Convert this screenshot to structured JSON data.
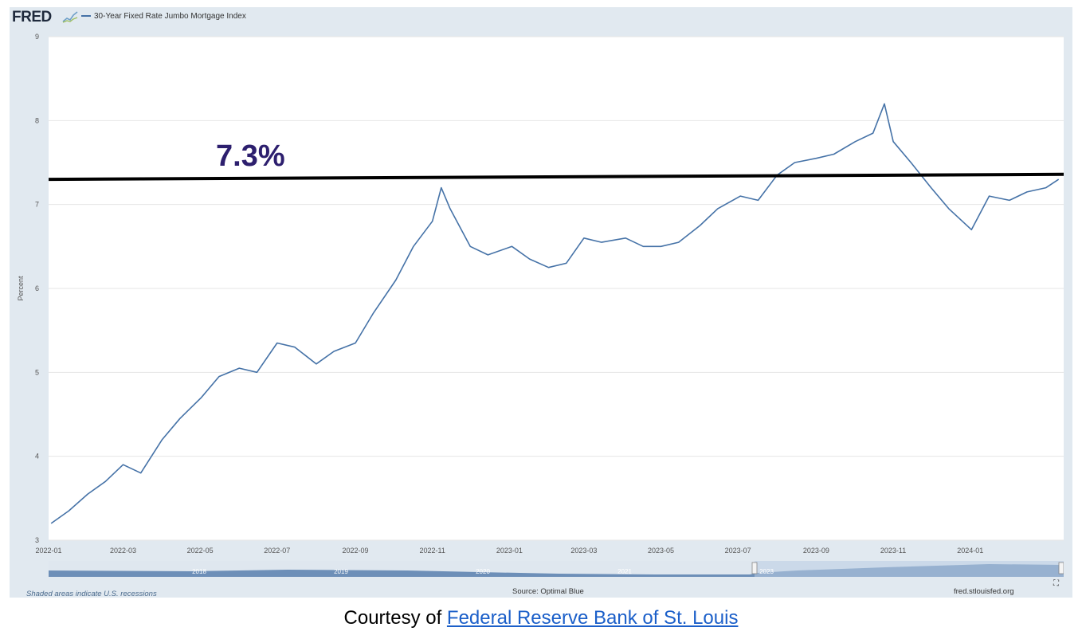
{
  "header": {
    "logo_text": "FRED",
    "legend_label": "30-Year Fixed Rate Jumbo Mortgage Index"
  },
  "annotation": {
    "label": "7.3%",
    "value": 7.3
  },
  "footer": {
    "recession_note": "Shaded areas indicate U.S. recessions",
    "source": "Source: Optimal Blue",
    "site": "fred.stlouisfed.org"
  },
  "caption": {
    "prefix": "Courtesy of ",
    "link_text": "Federal Reserve Bank of St. Louis"
  },
  "navigator": {
    "year_labels": [
      "2018",
      "2019",
      "2020",
      "2021",
      "2023"
    ]
  },
  "colors": {
    "series": "#4572a7",
    "frame": "#e1e9f0",
    "annotation_text": "#2d1f6e",
    "link": "#1b5fc9"
  },
  "chart_data": {
    "type": "line",
    "title": "",
    "xlabel": "",
    "ylabel": "Percent",
    "ylim": [
      3,
      9
    ],
    "y_ticks": [
      "3",
      "4",
      "5",
      "6",
      "7",
      "8",
      "9"
    ],
    "x_ticks": [
      "2022-01",
      "2022-03",
      "2022-05",
      "2022-07",
      "2022-09",
      "2022-11",
      "2023-01",
      "2023-03",
      "2023-05",
      "2023-07",
      "2023-09",
      "2023-11",
      "2024-01"
    ],
    "grid": true,
    "series": [
      {
        "name": "30-Year Fixed Rate Jumbo Mortgage Index",
        "x": [
          "2022-01-03",
          "2022-01-17",
          "2022-02-01",
          "2022-02-15",
          "2022-03-01",
          "2022-03-15",
          "2022-04-01",
          "2022-04-15",
          "2022-05-02",
          "2022-05-16",
          "2022-06-01",
          "2022-06-15",
          "2022-07-01",
          "2022-07-15",
          "2022-08-01",
          "2022-08-15",
          "2022-09-01",
          "2022-09-15",
          "2022-10-03",
          "2022-10-17",
          "2022-11-01",
          "2022-11-08",
          "2022-11-15",
          "2022-12-01",
          "2022-12-15",
          "2023-01-03",
          "2023-01-17",
          "2023-02-01",
          "2023-02-15",
          "2023-03-01",
          "2023-03-15",
          "2023-04-03",
          "2023-04-17",
          "2023-05-01",
          "2023-05-15",
          "2023-06-01",
          "2023-06-15",
          "2023-07-03",
          "2023-07-17",
          "2023-08-01",
          "2023-08-15",
          "2023-09-01",
          "2023-09-15",
          "2023-10-02",
          "2023-10-16",
          "2023-10-25",
          "2023-11-01",
          "2023-11-15",
          "2023-12-01",
          "2023-12-15",
          "2024-01-02",
          "2024-01-16",
          "2024-02-01",
          "2024-02-15",
          "2024-03-01",
          "2024-03-11"
        ],
        "y": [
          3.2,
          3.35,
          3.55,
          3.7,
          3.9,
          3.8,
          4.2,
          4.45,
          4.7,
          4.95,
          5.05,
          5.0,
          5.35,
          5.3,
          5.1,
          5.25,
          5.35,
          5.7,
          6.1,
          6.5,
          6.8,
          7.2,
          6.95,
          6.5,
          6.4,
          6.5,
          6.35,
          6.25,
          6.3,
          6.6,
          6.55,
          6.6,
          6.5,
          6.5,
          6.55,
          6.75,
          6.95,
          7.1,
          7.05,
          7.35,
          7.5,
          7.55,
          7.6,
          7.75,
          7.85,
          8.2,
          7.75,
          7.5,
          7.2,
          6.95,
          6.7,
          7.1,
          7.05,
          7.15,
          7.2,
          7.3
        ]
      }
    ],
    "reference_line": {
      "y_start": 7.3,
      "y_end": 7.36,
      "label": "7.3%"
    }
  }
}
